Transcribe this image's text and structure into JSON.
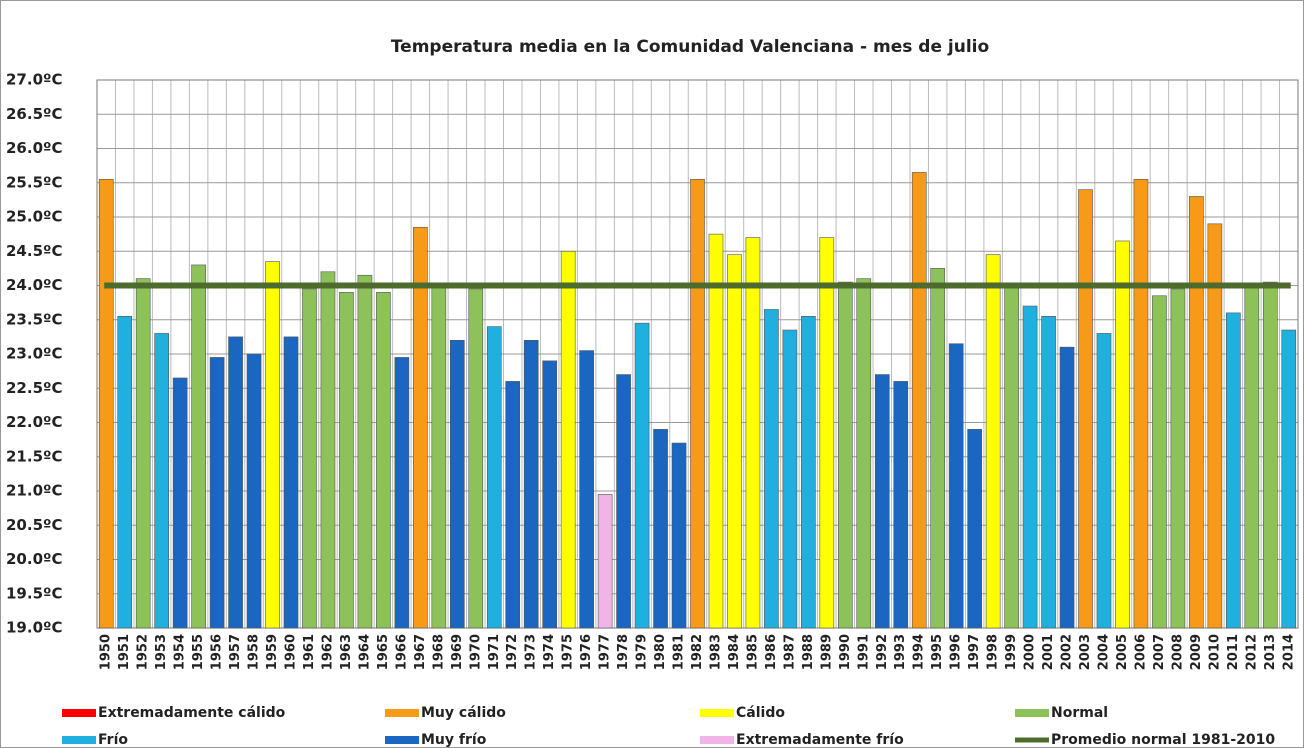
{
  "chart_data": {
    "type": "bar",
    "title": "Temperatura media en la Comunidad Valenciana - mes de julio",
    "categories": [
      "1950",
      "1951",
      "1952",
      "1953",
      "1954",
      "1955",
      "1956",
      "1957",
      "1958",
      "1959",
      "1960",
      "1961",
      "1962",
      "1963",
      "1964",
      "1965",
      "1966",
      "1967",
      "1968",
      "1969",
      "1970",
      "1971",
      "1972",
      "1973",
      "1974",
      "1975",
      "1976",
      "1977",
      "1978",
      "1979",
      "1980",
      "1981",
      "1982",
      "1983",
      "1984",
      "1985",
      "1986",
      "1987",
      "1988",
      "1989",
      "1990",
      "1991",
      "1992",
      "1993",
      "1994",
      "1995",
      "1996",
      "1997",
      "1998",
      "1999",
      "2000",
      "2001",
      "2002",
      "2003",
      "2004",
      "2005",
      "2006",
      "2007",
      "2008",
      "2009",
      "2010",
      "2011",
      "2012",
      "2013",
      "2014"
    ],
    "values": [
      25.55,
      23.55,
      24.1,
      23.3,
      22.65,
      24.3,
      22.95,
      23.25,
      23.0,
      24.35,
      23.25,
      23.95,
      24.2,
      23.9,
      24.15,
      23.9,
      22.95,
      24.85,
      24.0,
      23.2,
      23.95,
      23.4,
      22.6,
      23.2,
      22.9,
      24.5,
      23.05,
      20.95,
      22.7,
      23.45,
      21.9,
      21.7,
      25.55,
      24.75,
      24.45,
      24.7,
      23.65,
      23.35,
      23.55,
      24.7,
      24.05,
      24.1,
      22.7,
      22.6,
      25.65,
      24.25,
      23.15,
      21.9,
      24.45,
      24.0,
      23.7,
      23.55,
      23.1,
      25.4,
      23.3,
      24.65,
      25.55,
      23.85,
      23.95,
      25.3,
      24.9,
      23.6,
      24.0,
      24.05,
      23.35
    ],
    "colors": [
      "#f79a17",
      "#1fb0e0",
      "#8dc25a",
      "#1fb0e0",
      "#1a66c0",
      "#8dc25a",
      "#1a66c0",
      "#1a66c0",
      "#1a66c0",
      "#ffff00",
      "#1a66c0",
      "#8dc25a",
      "#8dc25a",
      "#8dc25a",
      "#8dc25a",
      "#8dc25a",
      "#1a66c0",
      "#f79a17",
      "#8dc25a",
      "#1a66c0",
      "#8dc25a",
      "#1fb0e0",
      "#1a66c0",
      "#1a66c0",
      "#1a66c0",
      "#ffff00",
      "#1a66c0",
      "#f0b5e6",
      "#1a66c0",
      "#1fb0e0",
      "#1a66c0",
      "#1a66c0",
      "#f79a17",
      "#ffff00",
      "#ffff00",
      "#ffff00",
      "#1fb0e0",
      "#1fb0e0",
      "#1fb0e0",
      "#ffff00",
      "#8dc25a",
      "#8dc25a",
      "#1a66c0",
      "#1a66c0",
      "#f79a17",
      "#8dc25a",
      "#1a66c0",
      "#1a66c0",
      "#ffff00",
      "#8dc25a",
      "#1fb0e0",
      "#1fb0e0",
      "#1a66c0",
      "#f79a17",
      "#1fb0e0",
      "#ffff00",
      "#f79a17",
      "#8dc25a",
      "#8dc25a",
      "#f79a17",
      "#f79a17",
      "#1fb0e0",
      "#8dc25a",
      "#8dc25a",
      "#1fb0e0"
    ],
    "legend": [
      {
        "name": "Extremadamente cálido",
        "color": "#ff0000"
      },
      {
        "name": "Muy cálido",
        "color": "#f79a17"
      },
      {
        "name": "Cálido",
        "color": "#ffff00"
      },
      {
        "name": "Normal",
        "color": "#8dc25a"
      },
      {
        "name": "Frío",
        "color": "#1fb0e0"
      },
      {
        "name": "Muy frío",
        "color": "#1a66c0"
      },
      {
        "name": "Extremadamente frío",
        "color": "#f0b5e6"
      }
    ],
    "reference_line": {
      "name": "Promedio normal 1981-2010",
      "color": "#4e6b2e",
      "value": 24.0
    },
    "ylim": [
      19.0,
      27.0
    ],
    "yticks": [
      {
        "value": 19.0,
        "label": "19.0ºC"
      },
      {
        "value": 19.5,
        "label": "19.5ºC"
      },
      {
        "value": 20.0,
        "label": "20.0ºC"
      },
      {
        "value": 20.5,
        "label": "20.5ºC"
      },
      {
        "value": 21.0,
        "label": "21.0ºC"
      },
      {
        "value": 21.5,
        "label": "21.5ºC"
      },
      {
        "value": 22.0,
        "label": "22.0ºC"
      },
      {
        "value": 22.5,
        "label": "22.5ºC"
      },
      {
        "value": 23.0,
        "label": "23.0ºC"
      },
      {
        "value": 23.5,
        "label": "23.5ºC"
      },
      {
        "value": 24.0,
        "label": "24.0ºC"
      },
      {
        "value": 24.5,
        "label": "24.5ºC"
      },
      {
        "value": 25.0,
        "label": "25.0ºC"
      },
      {
        "value": 25.5,
        "label": "25.5ºC"
      },
      {
        "value": 26.0,
        "label": "26.0ºC"
      },
      {
        "value": 26.5,
        "label": "26.5ºC"
      },
      {
        "value": 27.0,
        "label": "27.0ºC"
      }
    ],
    "grid": true
  }
}
